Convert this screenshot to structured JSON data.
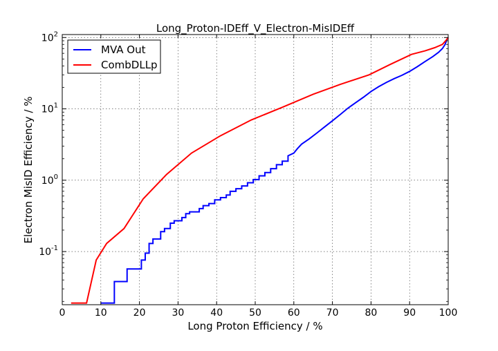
{
  "chart_data": {
    "type": "line",
    "title": "Long_Proton-IDEff_V_Electron-MisIDEff",
    "xlabel": "Long Proton Efficiency / %",
    "ylabel": "Electron MisID Efficiency / %",
    "xlim": [
      0,
      100
    ],
    "ylim": [
      0.018,
      110
    ],
    "yscale": "log",
    "grid": true,
    "legend_position": "top-left",
    "x_ticks": [
      {
        "value": 0,
        "label": "0"
      },
      {
        "value": 10,
        "label": "10"
      },
      {
        "value": 20,
        "label": "20"
      },
      {
        "value": 30,
        "label": "30"
      },
      {
        "value": 40,
        "label": "40"
      },
      {
        "value": 50,
        "label": "50"
      },
      {
        "value": 60,
        "label": "60"
      },
      {
        "value": 70,
        "label": "70"
      },
      {
        "value": 80,
        "label": "80"
      },
      {
        "value": 90,
        "label": "90"
      },
      {
        "value": 100,
        "label": "100"
      }
    ],
    "y_ticks": [
      {
        "value": 0.1,
        "base": "10",
        "exp": "-1"
      },
      {
        "value": 1,
        "base": "10",
        "exp": "0"
      },
      {
        "value": 10,
        "base": "10",
        "exp": "1"
      },
      {
        "value": 100,
        "base": "10",
        "exp": "2"
      }
    ],
    "series": [
      {
        "name": "MVA Out",
        "color": "#0000ff",
        "step": true,
        "points": [
          [
            10,
            0.019
          ],
          [
            13.5,
            0.019
          ],
          [
            13.5,
            0.038
          ],
          [
            16.8,
            0.038
          ],
          [
            16.8,
            0.057
          ],
          [
            20.5,
            0.057
          ],
          [
            20.5,
            0.076
          ],
          [
            21.5,
            0.076
          ],
          [
            21.5,
            0.095
          ],
          [
            22.5,
            0.095
          ],
          [
            22.5,
            0.13
          ],
          [
            23.5,
            0.13
          ],
          [
            23.5,
            0.15
          ],
          [
            25.5,
            0.15
          ],
          [
            25.5,
            0.19
          ],
          [
            26.5,
            0.19
          ],
          [
            26.5,
            0.21
          ],
          [
            28,
            0.21
          ],
          [
            28,
            0.25
          ],
          [
            29,
            0.25
          ],
          [
            29,
            0.27
          ],
          [
            31,
            0.27
          ],
          [
            31,
            0.3
          ],
          [
            32,
            0.3
          ],
          [
            32,
            0.34
          ],
          [
            33,
            0.34
          ],
          [
            33,
            0.36
          ],
          [
            35.5,
            0.36
          ],
          [
            35.5,
            0.4
          ],
          [
            36.5,
            0.4
          ],
          [
            36.5,
            0.44
          ],
          [
            38,
            0.44
          ],
          [
            38,
            0.47
          ],
          [
            39.5,
            0.47
          ],
          [
            39.5,
            0.53
          ],
          [
            41,
            0.53
          ],
          [
            41,
            0.57
          ],
          [
            42.5,
            0.57
          ],
          [
            42.5,
            0.62
          ],
          [
            43.5,
            0.62
          ],
          [
            43.5,
            0.7
          ],
          [
            45,
            0.7
          ],
          [
            45,
            0.76
          ],
          [
            46.5,
            0.76
          ],
          [
            46.5,
            0.83
          ],
          [
            48,
            0.83
          ],
          [
            48,
            0.92
          ],
          [
            49.5,
            0.92
          ],
          [
            49.5,
            1.02
          ],
          [
            51,
            1.02
          ],
          [
            51,
            1.15
          ],
          [
            52.5,
            1.15
          ],
          [
            52.5,
            1.28
          ],
          [
            54,
            1.28
          ],
          [
            54,
            1.45
          ],
          [
            55.5,
            1.45
          ],
          [
            55.5,
            1.65
          ],
          [
            57,
            1.65
          ],
          [
            57,
            1.85
          ],
          [
            58.5,
            1.85
          ],
          [
            58.5,
            2.2
          ],
          [
            60,
            2.4
          ],
          [
            61,
            2.8
          ],
          [
            62,
            3.2
          ],
          [
            64,
            3.8
          ],
          [
            66,
            4.6
          ],
          [
            68,
            5.6
          ],
          [
            70,
            6.8
          ],
          [
            72,
            8.3
          ],
          [
            74,
            10.2
          ],
          [
            76,
            12.2
          ],
          [
            78,
            14.5
          ],
          [
            80,
            17.5
          ],
          [
            82,
            20.5
          ],
          [
            84,
            23.5
          ],
          [
            86,
            26.5
          ],
          [
            88,
            29.5
          ],
          [
            90,
            33.5
          ],
          [
            92,
            39
          ],
          [
            94,
            46
          ],
          [
            96,
            54
          ],
          [
            97.5,
            62
          ],
          [
            98.5,
            70
          ],
          [
            99.2,
            80
          ],
          [
            99.7,
            95
          ],
          [
            100,
            100
          ]
        ]
      },
      {
        "name": "CombDLLp",
        "color": "#ff0000",
        "step": false,
        "points": [
          [
            2.3,
            0.019
          ],
          [
            6.3,
            0.019
          ],
          [
            8.8,
            0.076
          ],
          [
            11.5,
            0.13
          ],
          [
            16,
            0.21
          ],
          [
            21,
            0.55
          ],
          [
            27,
            1.2
          ],
          [
            33.5,
            2.4
          ],
          [
            41,
            4.2
          ],
          [
            49,
            7.0
          ],
          [
            57,
            10.5
          ],
          [
            65,
            16
          ],
          [
            72,
            22
          ],
          [
            79.5,
            30
          ],
          [
            85,
            42
          ],
          [
            90.5,
            58
          ],
          [
            94,
            65
          ],
          [
            96.5,
            72
          ],
          [
            98.5,
            80
          ],
          [
            99.5,
            92
          ],
          [
            100,
            100
          ]
        ]
      }
    ]
  }
}
